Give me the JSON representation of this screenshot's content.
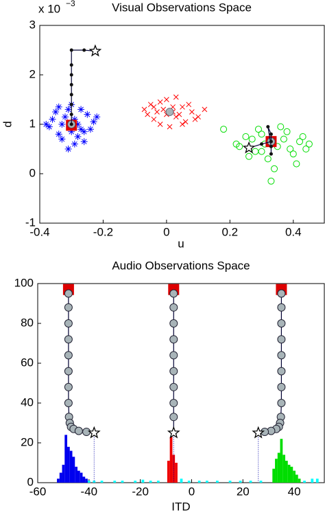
{
  "chart_data": [
    {
      "type": "scatter",
      "title": "Visual Observations Space",
      "x_label": "u",
      "y_label": "d",
      "y_multiplier": "x 10",
      "y_multiplier_exp": "−3",
      "xlim": [
        -0.4,
        0.5
      ],
      "xticks": [
        -0.4,
        -0.2,
        0,
        0.2,
        0.4
      ],
      "ylim": [
        -1,
        3
      ],
      "yticks": [
        -1,
        0,
        1,
        2,
        3
      ],
      "series": [
        {
          "color": "#0000ff",
          "marker": "asterisk",
          "x": [
            -0.36,
            -0.34,
            -0.31,
            -0.27,
            -0.25,
            -0.33,
            -0.29,
            -0.23,
            -0.37,
            -0.3,
            -0.28,
            -0.32,
            -0.26,
            -0.35,
            -0.24,
            -0.31,
            -0.29,
            -0.27,
            -0.33,
            -0.38,
            -0.22,
            -0.3,
            -0.28,
            -0.34,
            -0.26
          ],
          "values": [
            1.1,
            0.8,
            1.3,
            0.9,
            1.2,
            1.0,
            0.6,
            1.05,
            0.95,
            1.4,
            0.75,
            1.15,
            0.85,
            1.25,
            0.9,
            0.5,
            1.1,
            1.3,
            0.7,
            1.0,
            1.15,
            0.85,
            1.0,
            1.35,
            0.65
          ]
        },
        {
          "color": "#ff0000",
          "marker": "cross",
          "x": [
            -0.07,
            -0.04,
            -0.02,
            0.0,
            0.02,
            0.05,
            0.08,
            0.1,
            -0.05,
            0.03,
            0.06,
            -0.01,
            0.01,
            0.04,
            -0.03,
            0.07,
            0.09,
            -0.06,
            0.0,
            0.12,
            -0.02,
            0.05,
            0.03,
            0.02,
            -0.04
          ],
          "values": [
            1.3,
            1.1,
            1.45,
            1.2,
            1.35,
            1.0,
            1.25,
            1.15,
            1.4,
            1.55,
            1.05,
            1.3,
            0.95,
            1.2,
            1.25,
            1.4,
            1.1,
            1.2,
            1.5,
            1.3,
            1.0,
            1.35,
            1.15,
            1.25,
            1.35
          ]
        },
        {
          "color": "#00dd00",
          "marker": "circle",
          "x": [
            0.18,
            0.22,
            0.25,
            0.28,
            0.3,
            0.32,
            0.35,
            0.37,
            0.4,
            0.42,
            0.44,
            0.26,
            0.29,
            0.34,
            0.38,
            0.41,
            0.23,
            0.31,
            0.36,
            0.39,
            0.27,
            0.33,
            0.43,
            0.45,
            0.3
          ],
          "values": [
            0.9,
            0.6,
            0.75,
            0.45,
            0.8,
            0.3,
            0.55,
            0.7,
            0.4,
            0.65,
            0.5,
            0.35,
            0.9,
            0.1,
            0.85,
            0.2,
            0.55,
            0.6,
            0.95,
            0.5,
            0.7,
            -0.15,
            0.75,
            0.6,
            0.45
          ]
        },
        {
          "color": "#dd0000",
          "marker": "square",
          "x": [
            -0.3,
            0.33
          ],
          "values": [
            0.98,
            0.65
          ]
        },
        {
          "color": "#a8b4b8",
          "marker": "mean",
          "x": [
            -0.3,
            0.01,
            0.33
          ],
          "values": [
            1.0,
            1.25,
            0.65
          ]
        },
        {
          "color": "#000033",
          "marker": "trajectory",
          "x": [
            -0.3,
            -0.3,
            -0.3,
            -0.3,
            -0.3,
            -0.3,
            -0.3,
            -0.3,
            -0.26,
            -0.225
          ],
          "values": [
            1.0,
            1.2,
            1.4,
            1.6,
            1.8,
            2.0,
            2.2,
            2.5,
            2.5,
            2.48
          ]
        },
        {
          "color": "#000033",
          "marker": "trajectory",
          "x": [
            0.33,
            0.33,
            0.32,
            0.33,
            0.33,
            0.3,
            0.26
          ],
          "values": [
            0.4,
            0.55,
            0.95,
            0.8,
            0.65,
            0.6,
            0.52
          ]
        }
      ]
    },
    {
      "type": "bar",
      "title": "Audio Observations Space",
      "x_label": "ITD",
      "xlim": [
        -60,
        52
      ],
      "xticks": [
        -60,
        -40,
        -20,
        0,
        20,
        40
      ],
      "ylim": [
        0,
        100
      ],
      "yticks": [
        0,
        20,
        40,
        60,
        80,
        100
      ],
      "series": [
        {
          "color": "#0000ee",
          "marker": "bar",
          "x": [
            -52,
            -51,
            -50,
            -49,
            -48,
            -47,
            -46,
            -45,
            -44,
            -43,
            -42,
            -41
          ],
          "values": [
            2,
            5,
            9,
            24,
            18,
            16,
            13,
            8,
            6,
            5,
            3,
            2
          ]
        },
        {
          "color": "#ee0000",
          "marker": "bar",
          "x": [
            -9,
            -8,
            -7,
            -6
          ],
          "values": [
            11,
            23,
            14,
            10
          ]
        },
        {
          "color": "#00dd00",
          "marker": "bar",
          "x": [
            32,
            33,
            34,
            35,
            36,
            37,
            38,
            39,
            40,
            41,
            42
          ],
          "values": [
            7,
            12,
            15,
            22,
            14,
            11,
            9,
            8,
            6,
            4,
            2
          ]
        },
        {
          "color": "#00ffff",
          "marker": "bar",
          "x": [
            -40,
            -38,
            -35,
            -30,
            -27,
            -22,
            -19,
            -16,
            -13,
            -4,
            -1,
            3,
            6,
            10,
            15,
            19,
            23,
            27,
            44,
            47,
            49
          ],
          "values": [
            1,
            1,
            1,
            1,
            1,
            1,
            1.5,
            1,
            1,
            2,
            1,
            1,
            1,
            1,
            1,
            1,
            1,
            1,
            1,
            2,
            2
          ]
        },
        {
          "color": "#dd0000",
          "marker": "square",
          "x": [
            -48,
            -7,
            35
          ],
          "values": [
            97,
            97,
            97
          ]
        },
        {
          "color": "#000033",
          "marker": "trajectory-circles",
          "x": [
            -48,
            -48,
            -48,
            -48,
            -48,
            -48,
            -48,
            -48,
            -47.8,
            -47.5,
            -47,
            -46,
            -44,
            -41,
            -38
          ],
          "values": [
            95,
            88,
            80,
            72,
            64,
            56,
            48,
            40,
            33,
            30,
            28,
            27,
            26,
            25.5,
            25
          ]
        },
        {
          "color": "#000033",
          "marker": "trajectory-circles",
          "x": [
            -7,
            -7,
            -7,
            -7,
            -7,
            -7,
            -7,
            -7,
            -7,
            -7
          ],
          "values": [
            95,
            88,
            80,
            72,
            64,
            56,
            48,
            40,
            33,
            25
          ]
        },
        {
          "color": "#000033",
          "marker": "trajectory-circles",
          "x": [
            35,
            35,
            35,
            35,
            35,
            35,
            35,
            35,
            34.8,
            34.5,
            34,
            33,
            31,
            28.5,
            26
          ],
          "values": [
            95,
            88,
            80,
            72,
            64,
            56,
            48,
            40,
            33,
            30,
            28,
            27,
            26,
            25.5,
            25
          ]
        }
      ]
    }
  ]
}
